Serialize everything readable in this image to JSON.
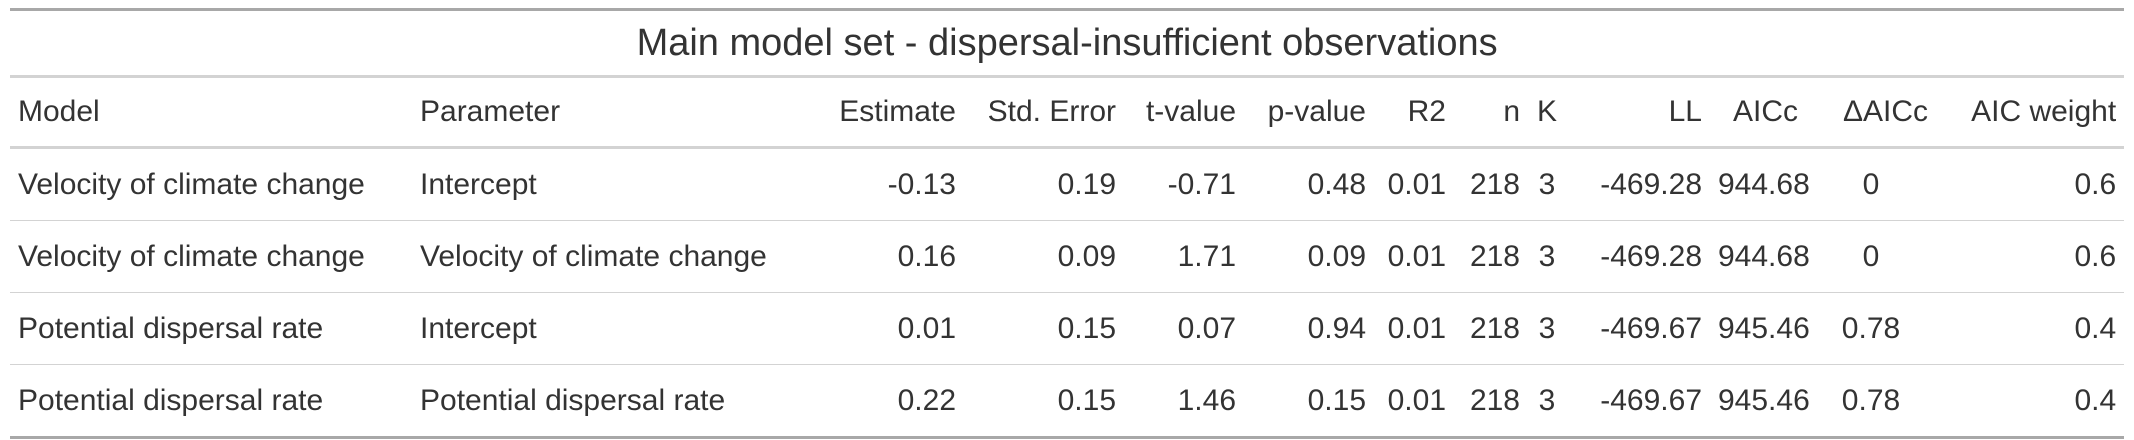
{
  "table": {
    "title": "Main model set - dispersal-insufficient observations",
    "columns": [
      "Model",
      "Parameter",
      "Estimate",
      "Std. Error",
      "t-value",
      "p-value",
      "R2",
      "n",
      "K",
      "LL",
      "AICc",
      "ΔAICc",
      "AIC weight"
    ],
    "rows": [
      [
        "Velocity of climate change",
        "Intercept",
        "-0.13",
        "0.19",
        "-0.71",
        "0.48",
        "0.01",
        "218",
        "3",
        "-469.28",
        "944.68",
        "0",
        "0.6"
      ],
      [
        "Velocity of climate change",
        "Velocity of climate change",
        "0.16",
        "0.09",
        "1.71",
        "0.09",
        "0.01",
        "218",
        "3",
        "-469.28",
        "944.68",
        "0",
        "0.6"
      ],
      [
        "Potential dispersal rate",
        "Intercept",
        "0.01",
        "0.15",
        "0.07",
        "0.94",
        "0.01",
        "218",
        "3",
        "-469.67",
        "945.46",
        "0.78",
        "0.4"
      ],
      [
        "Potential dispersal rate",
        "Potential dispersal rate",
        "0.22",
        "0.15",
        "1.46",
        "0.15",
        "0.01",
        "218",
        "3",
        "-469.67",
        "945.46",
        "0.78",
        "0.4"
      ]
    ]
  }
}
